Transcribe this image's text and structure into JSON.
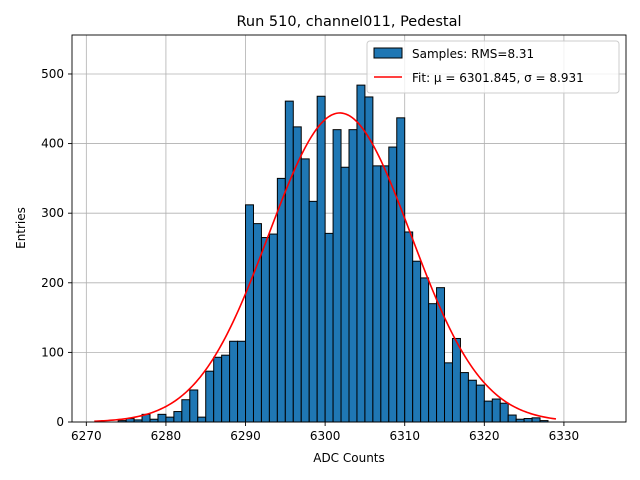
{
  "chart_data": {
    "type": "bar",
    "title": "Run 510, channel011, Pedestal",
    "xlabel": "ADC Counts",
    "ylabel": "Entries",
    "xlim": [
      6268.2,
      6337.8
    ],
    "ylim": [
      0,
      556
    ],
    "xticks": [
      6270,
      6280,
      6290,
      6300,
      6310,
      6320,
      6330
    ],
    "yticks": [
      0,
      100,
      200,
      300,
      400,
      500
    ],
    "grid": true,
    "legend_position": "top-right",
    "bin_width": 1,
    "colors": {
      "bars": "#1f77b4",
      "bar_edge": "#000000",
      "fit": "#ff0000",
      "grid": "#b0b0b0"
    },
    "histogram": {
      "name": "Samples: RMS=8.31",
      "bin_left_edges": [
        6274,
        6275,
        6276,
        6277,
        6278,
        6279,
        6280,
        6281,
        6282,
        6283,
        6284,
        6285,
        6286,
        6287,
        6288,
        6289,
        6290,
        6291,
        6292,
        6293,
        6294,
        6295,
        6296,
        6297,
        6298,
        6299,
        6300,
        6301,
        6302,
        6303,
        6304,
        6305,
        6306,
        6307,
        6308,
        6309,
        6310,
        6311,
        6312,
        6313,
        6314,
        6315,
        6316,
        6317,
        6318,
        6319,
        6320,
        6321,
        6322,
        6323,
        6324,
        6325,
        6326,
        6327
      ],
      "counts": [
        2,
        5,
        3,
        11,
        4,
        11,
        7,
        15,
        32,
        46,
        7,
        73,
        93,
        96,
        116,
        116,
        312,
        285,
        265,
        270,
        350,
        461,
        424,
        378,
        317,
        468,
        271,
        420,
        366,
        420,
        484,
        467,
        368,
        368,
        395,
        437,
        273,
        231,
        207,
        170,
        193,
        85,
        120,
        71,
        60,
        53,
        30,
        33,
        27,
        10,
        4,
        5,
        6,
        2
      ]
    },
    "fit": {
      "name": "Fit: μ = 6301.845, σ = 8.931",
      "mu": 6301.845,
      "sigma": 8.931,
      "amplitude": 444,
      "x_range": [
        6271,
        6329
      ]
    }
  }
}
